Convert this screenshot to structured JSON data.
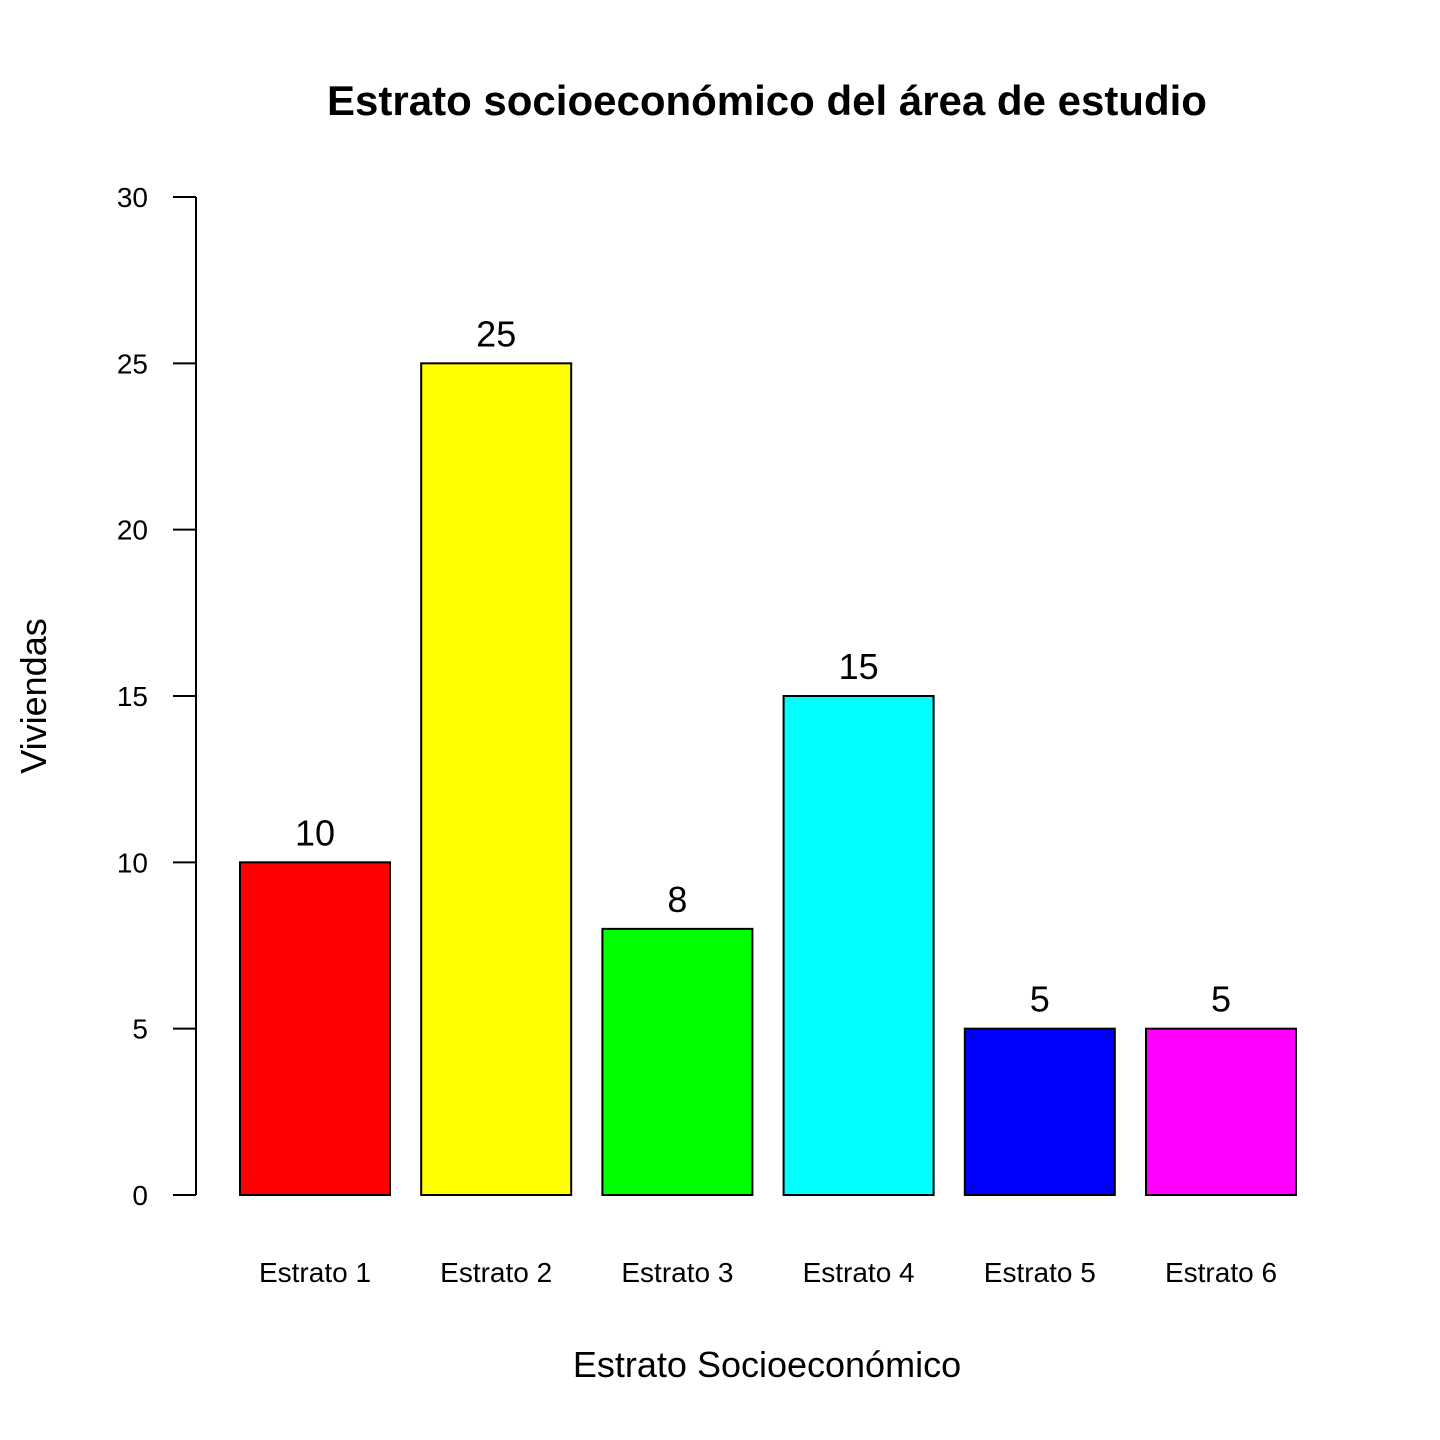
{
  "chart_data": {
    "type": "bar",
    "title": "Estrato socioeconómico del área de estudio",
    "xlabel": "Estrato Socioeconómico",
    "ylabel": "Viviendas",
    "categories": [
      "Estrato 1",
      "Estrato 2",
      "Estrato 3",
      "Estrato 4",
      "Estrato 5",
      "Estrato 6"
    ],
    "values": [
      10,
      25,
      8,
      15,
      5,
      5
    ],
    "data_labels": [
      "10",
      "25",
      "8",
      "15",
      "5",
      "5"
    ],
    "colors": [
      "#ff0000",
      "#ffff00",
      "#00ff00",
      "#00ffff",
      "#0000ff",
      "#ff00ff"
    ],
    "ylim": [
      0,
      30
    ],
    "yticks": [
      0,
      5,
      10,
      15,
      20,
      25,
      30
    ],
    "grid": false,
    "legend": "none"
  }
}
